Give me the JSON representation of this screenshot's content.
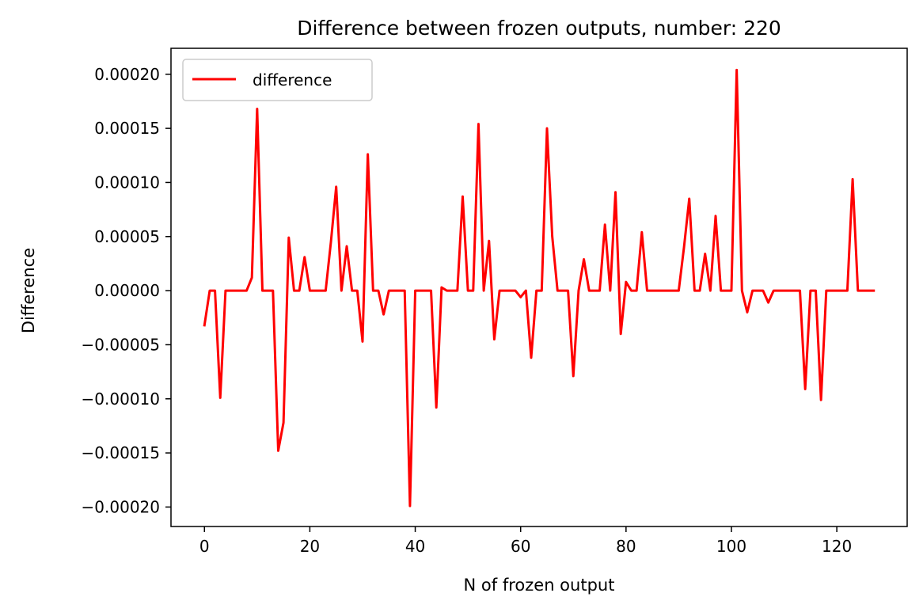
{
  "chart_data": {
    "type": "line",
    "title": "Difference between frozen outputs, number: 220",
    "xlabel": "N of frozen output",
    "ylabel": "Difference",
    "xlim": [
      -6.35,
      133.35
    ],
    "ylim": [
      -0.000218,
      0.000224
    ],
    "xticks": [
      0,
      20,
      40,
      60,
      80,
      100,
      120
    ],
    "xtick_labels": [
      "0",
      "20",
      "40",
      "60",
      "80",
      "100",
      "120"
    ],
    "yticks": [
      -0.0002,
      -0.00015,
      -0.0001,
      -5e-05,
      0,
      5e-05,
      0.0001,
      0.00015,
      0.0002
    ],
    "ytick_labels": [
      "−0.00020",
      "−0.00015",
      "−0.00010",
      "−0.00005",
      "0.00000",
      "0.00005",
      "0.00010",
      "0.00015",
      "0.00020"
    ],
    "grid": false,
    "legend_position": "top-left",
    "series": [
      {
        "name": "difference",
        "color": "#ff0000",
        "x": [
          0,
          1,
          2,
          3,
          4,
          5,
          6,
          7,
          8,
          9,
          10,
          11,
          12,
          13,
          14,
          15,
          16,
          17,
          18,
          19,
          20,
          21,
          22,
          23,
          24,
          25,
          26,
          27,
          28,
          29,
          30,
          31,
          32,
          33,
          34,
          35,
          36,
          37,
          38,
          39,
          40,
          41,
          42,
          43,
          44,
          45,
          46,
          47,
          48,
          49,
          50,
          51,
          52,
          53,
          54,
          55,
          56,
          57,
          58,
          59,
          60,
          61,
          62,
          63,
          64,
          65,
          66,
          67,
          68,
          69,
          70,
          71,
          72,
          73,
          74,
          75,
          76,
          77,
          78,
          79,
          80,
          81,
          82,
          83,
          84,
          85,
          86,
          87,
          88,
          89,
          90,
          91,
          92,
          93,
          94,
          95,
          96,
          97,
          98,
          99,
          100,
          101,
          102,
          103,
          104,
          105,
          106,
          107,
          108,
          109,
          110,
          111,
          112,
          113,
          114,
          115,
          116,
          117,
          118,
          119,
          120,
          121,
          122,
          123,
          124,
          125,
          126,
          127
        ],
        "values": [
          -3.2e-05,
          0,
          0,
          -9.9e-05,
          0,
          0,
          0,
          0,
          0,
          1.2e-05,
          0.000168,
          0,
          0,
          0,
          -0.000148,
          -0.000122,
          4.9e-05,
          0,
          0,
          3.1e-05,
          0,
          0,
          0,
          0,
          4.5e-05,
          9.6e-05,
          0,
          4.1e-05,
          0,
          0,
          -4.7e-05,
          0.000126,
          0,
          0,
          -2.2e-05,
          0,
          0,
          0,
          0,
          -0.000199,
          0,
          0,
          0,
          0,
          -0.000108,
          3e-06,
          0,
          0,
          0,
          8.7e-05,
          0,
          0,
          0.000154,
          0,
          4.6e-05,
          -4.5e-05,
          0,
          0,
          0,
          0,
          -6e-06,
          0,
          -6.2e-05,
          0,
          0,
          0.00015,
          5e-05,
          0,
          0,
          0,
          -7.9e-05,
          0,
          2.9e-05,
          0,
          0,
          0,
          6.1e-05,
          0,
          9.1e-05,
          -4e-05,
          8e-06,
          0,
          0,
          5.4e-05,
          0,
          0,
          0,
          0,
          0,
          0,
          0,
          4e-05,
          8.5e-05,
          0,
          0,
          3.4e-05,
          0,
          6.9e-05,
          0,
          0,
          0,
          0.000204,
          0,
          -2e-05,
          0,
          0,
          0,
          -1.1e-05,
          0,
          0,
          0,
          0,
          0,
          0,
          -9.1e-05,
          0,
          0,
          -0.000101,
          0,
          0,
          0,
          0,
          0,
          0.000103,
          0,
          0,
          0,
          0
        ]
      }
    ]
  }
}
